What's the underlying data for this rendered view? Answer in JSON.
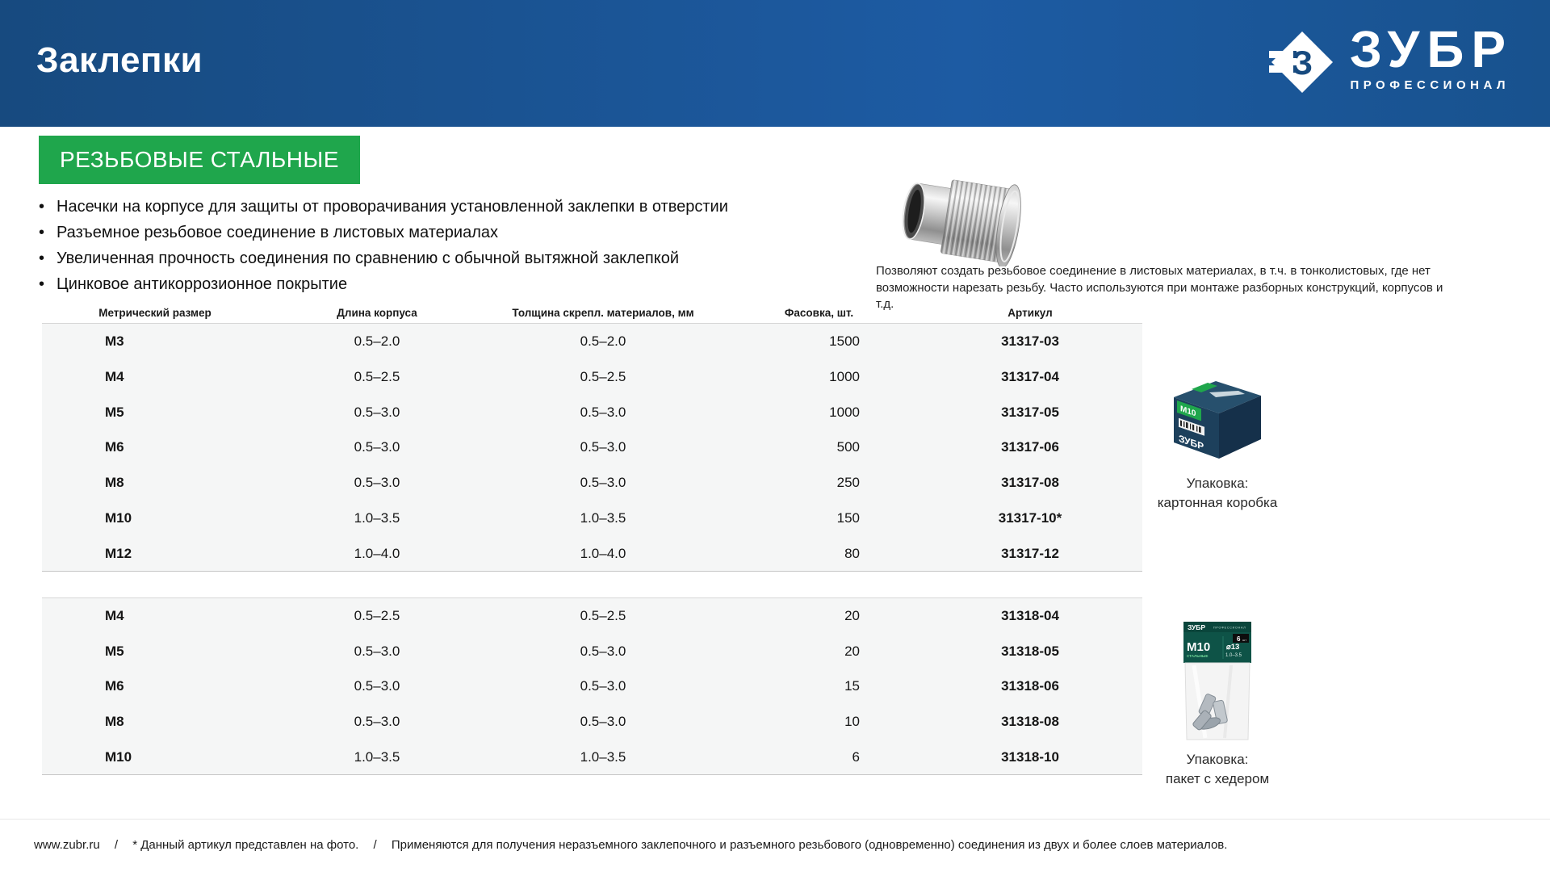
{
  "header": {
    "title": "Заклепки",
    "brand": "ЗУБР",
    "brand_sub": "ПРОФЕССИОНАЛ"
  },
  "section": {
    "badge": "РЕЗЬБОВЫЕ СТАЛЬНЫЕ"
  },
  "features": [
    "Насечки на корпусе для защиты от проворачивания установленной заклепки в отверстии",
    "Разъемное резьбовое соединение в листовых материалах",
    "Увеличенная прочность соединения по сравнению с обычной вытяжной заклепкой",
    "Цинковое антикоррозионное покрытие"
  ],
  "product_description": "Позволяют создать резьбовое соединение в листовых материалах, в т.ч. в тонколистовых, где нет возможности нарезать резьбу. Часто используются при монтаже разборных конструкций, корпусов и т.д.",
  "table_headers": [
    "Метрический размер",
    "Длина корпуса",
    "Толщина скрепл. материалов, мм",
    "Фасовка, шт.",
    "Артикул"
  ],
  "tables": [
    {
      "rows": [
        [
          "M3",
          "0.5–2.0",
          "0.5–2.0",
          "1500",
          "31317-03"
        ],
        [
          "M4",
          "0.5–2.5",
          "0.5–2.5",
          "1000",
          "31317-04"
        ],
        [
          "M5",
          "0.5–3.0",
          "0.5–3.0",
          "1000",
          "31317-05"
        ],
        [
          "M6",
          "0.5–3.0",
          "0.5–3.0",
          "500",
          "31317-06"
        ],
        [
          "M8",
          "0.5–3.0",
          "0.5–3.0",
          "250",
          "31317-08"
        ],
        [
          "M10",
          "1.0–3.5",
          "1.0–3.5",
          "150",
          "31317-10*"
        ],
        [
          "M12",
          "1.0–4.0",
          "1.0–4.0",
          "80",
          "31317-12"
        ]
      ]
    },
    {
      "rows": [
        [
          "M4",
          "0.5–2.5",
          "0.5–2.5",
          "20",
          "31318-04"
        ],
        [
          "M5",
          "0.5–3.0",
          "0.5–3.0",
          "20",
          "31318-05"
        ],
        [
          "M6",
          "0.5–3.0",
          "0.5–3.0",
          "15",
          "31318-06"
        ],
        [
          "M8",
          "0.5–3.0",
          "0.5–3.0",
          "10",
          "31318-08"
        ],
        [
          "M10",
          "1.0–3.5",
          "1.0–3.5",
          "6",
          "31318-10"
        ]
      ]
    }
  ],
  "packaging": {
    "box": {
      "caption_line1": "Упаковка:",
      "caption_line2": "картонная коробка",
      "label": "M10",
      "brand": "ЗУБР"
    },
    "bag": {
      "caption_line1": "Упаковка:",
      "caption_line2": "пакет с хедером",
      "brand": "ЗУБР",
      "brand_sub": "ПРОФЕССИОНАЛ",
      "size": "M10",
      "type": "СТАЛЬНЫЕ",
      "diameter": "⌀13",
      "range": "1.0–3.5",
      "count": "6",
      "count_unit": "шт"
    }
  },
  "footer": {
    "site": "www.zubr.ru",
    "separator": "/",
    "note_photo": "* Данный артикул представлен на фото.",
    "note_usage": "Применяются для получения неразъемного заклепочного и разъемного резьбового (одновременно) соединения из двух и более слоев материалов."
  },
  "colors": {
    "header_blue": "#174a7f",
    "header_blue_light": "#1d5ba3",
    "accent_green": "#1fa64c",
    "table_bg": "#f5f6f6"
  }
}
